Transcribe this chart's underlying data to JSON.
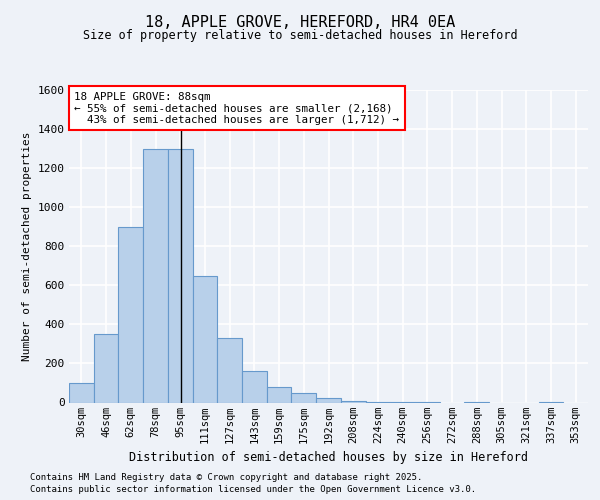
{
  "title1": "18, APPLE GROVE, HEREFORD, HR4 0EA",
  "title2": "Size of property relative to semi-detached houses in Hereford",
  "xlabel": "Distribution of semi-detached houses by size in Hereford",
  "ylabel": "Number of semi-detached properties",
  "categories": [
    "30sqm",
    "46sqm",
    "62sqm",
    "78sqm",
    "95sqm",
    "111sqm",
    "127sqm",
    "143sqm",
    "159sqm",
    "175sqm",
    "192sqm",
    "208sqm",
    "224sqm",
    "240sqm",
    "256sqm",
    "272sqm",
    "288sqm",
    "305sqm",
    "321sqm",
    "337sqm",
    "353sqm"
  ],
  "values": [
    100,
    350,
    900,
    1300,
    1300,
    650,
    330,
    160,
    80,
    50,
    25,
    8,
    5,
    3,
    1,
    0,
    2,
    0,
    0,
    1,
    0
  ],
  "bar_color": "#b8d0ea",
  "bar_edge_color": "#6699cc",
  "property_label": "18 APPLE GROVE: 88sqm",
  "pct_smaller": "55% of semi-detached houses are smaller (2,168)",
  "pct_larger": "43% of semi-detached houses are larger (1,712)",
  "line_x_index": 4.05,
  "ylim": [
    0,
    1600
  ],
  "yticks": [
    0,
    200,
    400,
    600,
    800,
    1000,
    1200,
    1400,
    1600
  ],
  "background_color": "#eef2f8",
  "grid_color": "#ffffff",
  "footer1": "Contains HM Land Registry data © Crown copyright and database right 2025.",
  "footer2": "Contains public sector information licensed under the Open Government Licence v3.0."
}
